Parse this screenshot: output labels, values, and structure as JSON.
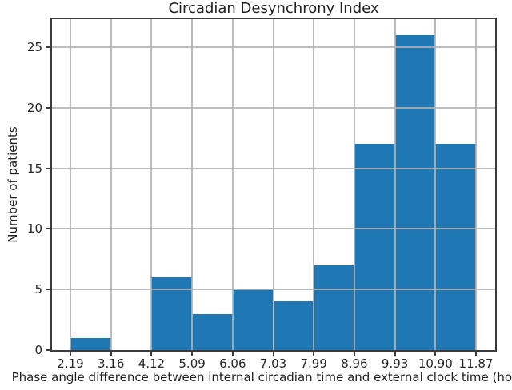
{
  "chart_data": {
    "type": "bar",
    "subtype": "histogram",
    "title": "Circadian Desynchrony Index",
    "xlabel": "Phase angle difference between internal circadian time and external clock time (hours)",
    "ylabel": "Number of patients",
    "bin_edges": [
      2.19,
      3.16,
      4.12,
      5.09,
      6.06,
      7.03,
      7.99,
      8.96,
      9.93,
      10.9,
      11.87
    ],
    "x_tick_labels": [
      "2.19",
      "3.16",
      "4.12",
      "5.09",
      "6.06",
      "7.03",
      "7.99",
      "8.96",
      "9.93",
      "10.90",
      "11.87"
    ],
    "values": [
      1,
      0,
      6,
      3,
      5,
      4,
      7,
      17,
      26,
      17
    ],
    "y_ticks": [
      0,
      5,
      10,
      15,
      20,
      25
    ],
    "ylim": [
      0,
      27.3
    ],
    "bar_color": "#1f77b4",
    "grid": true,
    "grid_color": "#b0b0b0",
    "grid_above_bars": true,
    "legend": null
  }
}
